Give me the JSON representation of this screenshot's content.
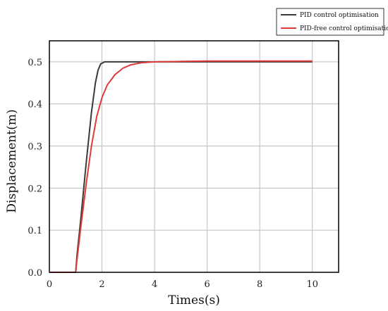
{
  "chart_data": {
    "type": "line",
    "title": "",
    "xlabel": "Times(s)",
    "ylabel": "Displacement(m)",
    "xlim": [
      0,
      11
    ],
    "ylim": [
      0,
      0.55
    ],
    "grid": true,
    "legend_position": "top-right",
    "x_ticks": [
      "0",
      "2",
      "4",
      "6",
      "8",
      "10"
    ],
    "y_ticks": [
      "0.0",
      "0.1",
      "0.2",
      "0.3",
      "0.4",
      "0.5"
    ],
    "series": [
      {
        "name": "PID control optimisation",
        "color": "#3a3a3a",
        "x": [
          0,
          1.0,
          1.05,
          1.2,
          1.4,
          1.6,
          1.75,
          1.85,
          1.95,
          2.1,
          2.3,
          2.6,
          3.0,
          4.0,
          6.0,
          8.0,
          10.0
        ],
        "y": [
          0,
          0,
          0.04,
          0.13,
          0.26,
          0.38,
          0.45,
          0.48,
          0.495,
          0.5,
          0.5,
          0.5,
          0.5,
          0.5,
          0.5,
          0.5,
          0.5
        ]
      },
      {
        "name": "PID-free control optimisation",
        "color": "#e03a3a",
        "x": [
          0,
          1.0,
          1.05,
          1.2,
          1.4,
          1.6,
          1.8,
          2.0,
          2.2,
          2.5,
          2.8,
          3.1,
          3.5,
          4.0,
          5.0,
          6.0,
          8.0,
          10.0
        ],
        "y": [
          0,
          0,
          0.03,
          0.11,
          0.21,
          0.3,
          0.37,
          0.415,
          0.445,
          0.47,
          0.485,
          0.493,
          0.498,
          0.5,
          0.501,
          0.502,
          0.502,
          0.502
        ]
      }
    ]
  }
}
